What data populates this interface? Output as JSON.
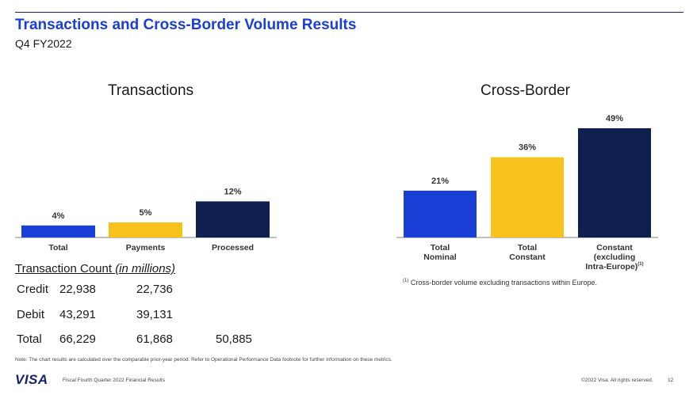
{
  "header": {
    "title": "Transactions and Cross-Border Volume Results",
    "subtitle": "Q4 FY2022"
  },
  "chart_data": [
    {
      "type": "bar",
      "title": "Transactions",
      "categories": [
        "Total",
        "Payments",
        "Processed"
      ],
      "values": [
        4,
        5,
        12
      ],
      "value_labels": [
        "4%",
        "5%",
        "12%"
      ],
      "colors": [
        "#1a3fd6",
        "#f7c21b",
        "#0f1f4f"
      ],
      "ylim": [
        0,
        14
      ],
      "xlabel": "",
      "ylabel": ""
    },
    {
      "type": "bar",
      "title": "Cross-Border",
      "categories": [
        "Total Nominal",
        "Total Constant",
        "Constant (excluding Intra-Europe)"
      ],
      "category_lines": [
        [
          "Total",
          "Nominal"
        ],
        [
          "Total",
          "Constant"
        ],
        [
          "Constant",
          "(excluding",
          "Intra-Europe)"
        ]
      ],
      "category_footnote_marker": "(1)",
      "values": [
        21,
        36,
        49
      ],
      "value_labels": [
        "21%",
        "36%",
        "49%"
      ],
      "colors": [
        "#1a3fd6",
        "#f7c21b",
        "#0f1f4f"
      ],
      "ylim": [
        0,
        50
      ],
      "xlabel": "",
      "ylabel": ""
    }
  ],
  "transaction_count": {
    "heading": "Transaction Count",
    "heading_unit": "(in millions)",
    "rows": [
      {
        "label": "Credit",
        "total": "22,938",
        "payments": "22,736",
        "processed": ""
      },
      {
        "label": "Debit",
        "total": "43,291",
        "payments": "39,131",
        "processed": ""
      },
      {
        "label": "Total",
        "total": "66,229",
        "payments": "61,868",
        "processed": "50,885"
      }
    ]
  },
  "footnote": {
    "marker": "(1)",
    "text": "Cross-border volume excluding transactions within Europe."
  },
  "note": "Note: The chart results are calculated over the comparable prior-year period. Refer to Operational Performance Data footnote for further information on these metrics.",
  "footer": {
    "logo": "VISA",
    "left": "Fiscal Fourth Quarter 2022 Financial Results",
    "copyright": "©2022 Visa. All rights reserved.",
    "page": "12"
  }
}
